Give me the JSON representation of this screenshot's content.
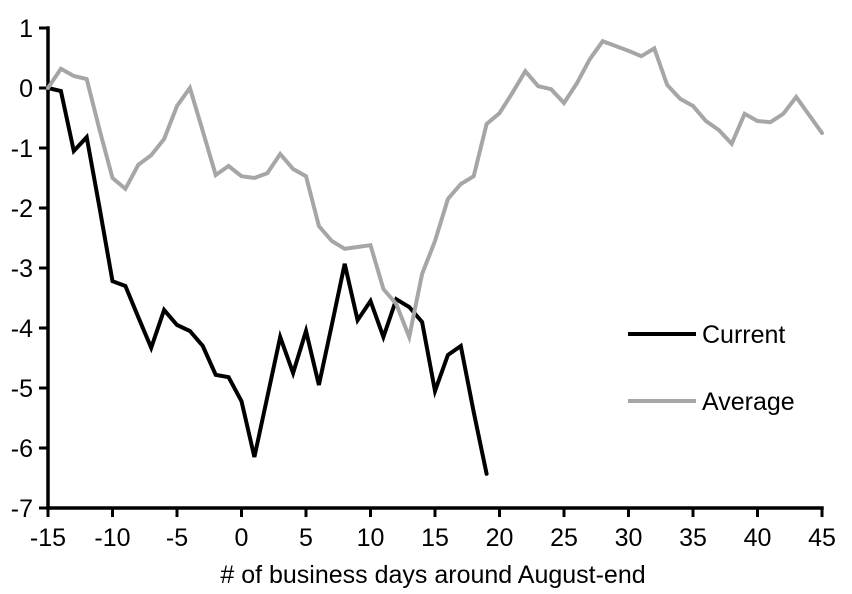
{
  "chart_data": {
    "type": "line",
    "title": "",
    "xlabel": "# of business days around August-end",
    "ylabel": "",
    "xlim": [
      -15,
      45
    ],
    "ylim": [
      -7,
      1
    ],
    "x_ticks": [
      -15,
      -10,
      -5,
      0,
      5,
      10,
      15,
      20,
      25,
      30,
      35,
      40,
      45
    ],
    "y_ticks": [
      1,
      0,
      -1,
      -2,
      -3,
      -4,
      -5,
      -6,
      -7
    ],
    "grid": false,
    "legend_position": "middle-right",
    "legend": [
      {
        "label": "Current",
        "color": "#000000"
      },
      {
        "label": "Average",
        "color": "#a6a6a6"
      }
    ],
    "series": [
      {
        "name": "Current",
        "color": "#000000",
        "x": [
          -15,
          -14,
          -13,
          -12,
          -11,
          -10,
          -9,
          -8,
          -7,
          -6,
          -5,
          -4,
          -3,
          -2,
          -1,
          0,
          1,
          2,
          3,
          4,
          5,
          6,
          7,
          8,
          9,
          10,
          11,
          12,
          13,
          14,
          15,
          16,
          17,
          18,
          19
        ],
        "values": [
          0,
          -0.05,
          -1.05,
          -0.82,
          -2.0,
          -3.22,
          -3.3,
          -3.82,
          -4.33,
          -3.7,
          -3.95,
          -4.05,
          -4.3,
          -4.78,
          -4.82,
          -5.22,
          -6.15,
          -5.15,
          -4.15,
          -4.75,
          -4.05,
          -4.95,
          -3.95,
          -2.93,
          -3.87,
          -3.55,
          -4.15,
          -3.52,
          -3.65,
          -3.9,
          -5.05,
          -4.45,
          -4.3,
          -5.4,
          -6.43
        ]
      },
      {
        "name": "Average",
        "color": "#a6a6a6",
        "x": [
          -15,
          -14,
          -13,
          -12,
          -11,
          -10,
          -9,
          -8,
          -7,
          -6,
          -5,
          -4,
          -3,
          -2,
          -1,
          0,
          1,
          2,
          3,
          4,
          5,
          6,
          7,
          8,
          9,
          10,
          11,
          12,
          13,
          14,
          15,
          16,
          17,
          18,
          19,
          20,
          21,
          22,
          23,
          24,
          25,
          26,
          27,
          28,
          29,
          30,
          31,
          32,
          33,
          34,
          35,
          36,
          37,
          38,
          39,
          40,
          41,
          42,
          43,
          44,
          45
        ],
        "values": [
          0,
          0.32,
          0.2,
          0.15,
          -0.7,
          -1.5,
          -1.68,
          -1.28,
          -1.12,
          -0.85,
          -0.3,
          0,
          -0.72,
          -1.45,
          -1.3,
          -1.47,
          -1.5,
          -1.42,
          -1.1,
          -1.35,
          -1.47,
          -2.3,
          -2.55,
          -2.68,
          -2.65,
          -2.62,
          -3.35,
          -3.6,
          -4.15,
          -3.1,
          -2.55,
          -1.85,
          -1.6,
          -1.47,
          -0.6,
          -0.42,
          -0.08,
          0.28,
          0.03,
          -0.02,
          -0.25,
          0.08,
          0.48,
          0.78,
          0.7,
          0.62,
          0.53,
          0.66,
          0.05,
          -0.18,
          -0.3,
          -0.55,
          -0.7,
          -0.93,
          -0.43,
          -0.55,
          -0.57,
          -0.43,
          -0.15,
          -0.45,
          -0.75
        ]
      }
    ]
  }
}
